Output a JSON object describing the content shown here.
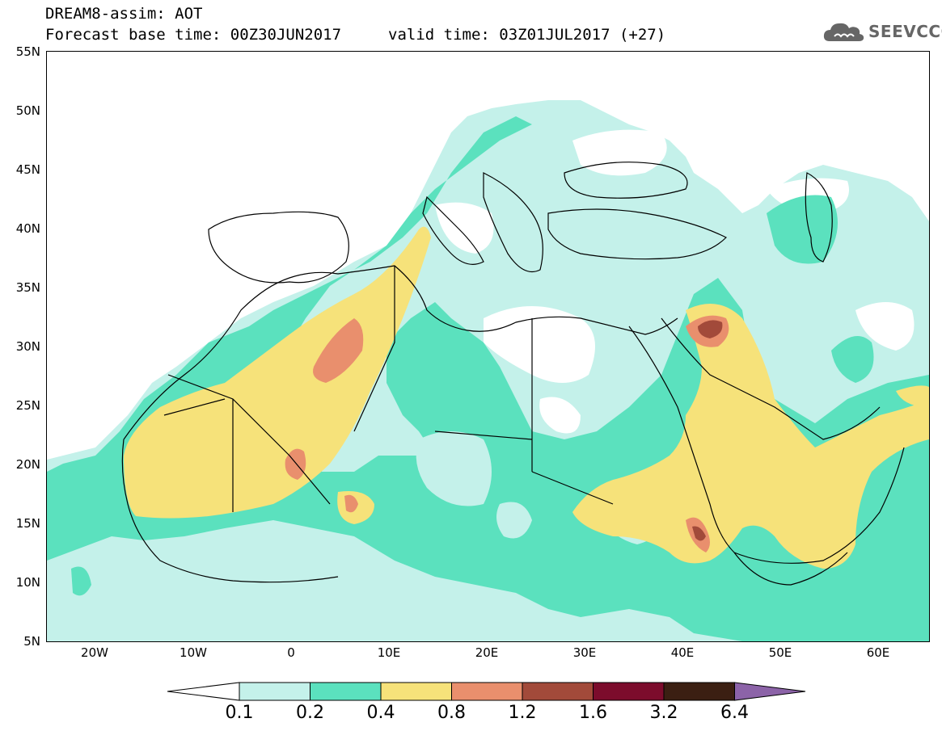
{
  "header": {
    "title": "DREAM8-assim: AOT",
    "forecast_base": "Forecast base time: 00Z30JUN2017",
    "valid_time": "valid time: 03Z01JUL2017 (+27)"
  },
  "logo": {
    "text": "SEEVCCC",
    "icon": "cloud-icon"
  },
  "map": {
    "lat_labels": [
      "55N",
      "50N",
      "45N",
      "40N",
      "35N",
      "30N",
      "25N",
      "20N",
      "15N",
      "10N",
      "5N"
    ],
    "lon_labels": [
      "20W",
      "10W",
      "0",
      "10E",
      "20E",
      "30E",
      "40E",
      "50E",
      "60E"
    ],
    "land_outline_color": "#000000"
  },
  "legend": {
    "thresholds": [
      "0.1",
      "0.2",
      "0.4",
      "0.8",
      "1.2",
      "1.6",
      "3.2",
      "6.4"
    ],
    "colors": [
      "#ffffff",
      "#c4f1ea",
      "#5be1be",
      "#f6e27a",
      "#e98f6d",
      "#a24a3a",
      "#7c0c2c",
      "#3b1f12",
      "#8c63a8"
    ]
  }
}
